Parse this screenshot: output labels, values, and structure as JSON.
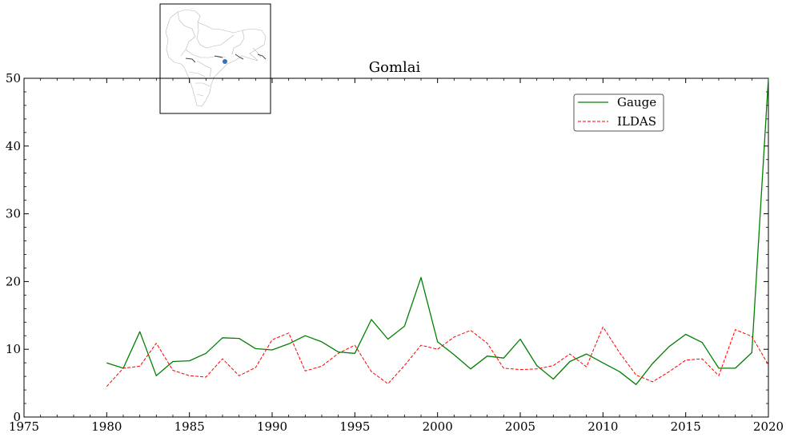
{
  "chart_data": {
    "type": "line",
    "title": "Gomlai",
    "xlabel": "",
    "ylabel": "",
    "xlim": [
      1975,
      2020
    ],
    "ylim": [
      0,
      50
    ],
    "xticks": [
      "1975",
      "1980",
      "1985",
      "1990",
      "1995",
      "2000",
      "2005",
      "2010",
      "2015",
      "2020"
    ],
    "yticks": [
      "0",
      "10",
      "20",
      "30",
      "40",
      "50"
    ],
    "grid": false,
    "legend_position": "top-right",
    "x": [
      1980,
      1981,
      1982,
      1983,
      1984,
      1985,
      1986,
      1987,
      1988,
      1989,
      1990,
      1991,
      1992,
      1993,
      1994,
      1995,
      1996,
      1997,
      1998,
      1999,
      2000,
      2001,
      2002,
      2003,
      2004,
      2005,
      2006,
      2007,
      2008,
      2009,
      2010,
      2011,
      2012,
      2013,
      2014,
      2015,
      2016,
      2017,
      2018,
      2019,
      2020
    ],
    "series": [
      {
        "name": "Gauge",
        "color": "#008000",
        "style": "solid",
        "values": [
          8.0,
          7.2,
          12.6,
          6.1,
          8.2,
          8.3,
          9.4,
          11.7,
          11.6,
          10.1,
          9.9,
          10.8,
          12.0,
          11.1,
          9.6,
          9.4,
          14.4,
          11.5,
          13.4,
          20.6,
          11.1,
          9.2,
          7.1,
          9.0,
          8.7,
          11.5,
          7.6,
          5.6,
          8.2,
          9.3,
          8.0,
          6.7,
          4.8,
          7.9,
          10.4,
          12.2,
          11.0,
          7.2,
          7.2,
          9.5,
          50.0
        ]
      },
      {
        "name": "ILDAS",
        "color": "#ff0000",
        "style": "dashed",
        "values": [
          4.5,
          7.2,
          7.5,
          10.9,
          6.9,
          6.1,
          5.9,
          8.6,
          6.1,
          7.3,
          11.4,
          12.4,
          6.8,
          7.5,
          9.4,
          10.6,
          6.7,
          4.9,
          7.6,
          10.6,
          10.0,
          11.8,
          12.8,
          10.9,
          7.2,
          7.0,
          7.1,
          7.6,
          9.3,
          7.4,
          13.3,
          9.5,
          6.2,
          5.2,
          6.7,
          8.4,
          8.6,
          6.1,
          12.9,
          11.9,
          7.7
        ]
      }
    ]
  },
  "inset_map": {
    "marker_color": "#3d6fb5"
  }
}
